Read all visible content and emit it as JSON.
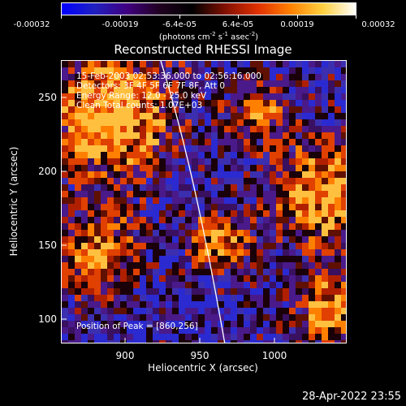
{
  "colorbar": {
    "labels": [
      "-0.00032",
      "-0.00019",
      "-6.4e-05",
      "6.4e-05",
      "0.00019",
      "0.00032"
    ],
    "units_prefix": "(photons cm",
    "units_exp1": "-2",
    "units_mid": " s",
    "units_exp2": "-1",
    "units_suffix": " asec",
    "units_exp3": "-2",
    "units_close": ")",
    "gradient": [
      "#0000ff",
      "#2020c0",
      "#400080",
      "#200020",
      "#000000",
      "#801000",
      "#e03000",
      "#ff8000",
      "#ffd040",
      "#ffffff"
    ]
  },
  "title": "Reconstructed RHESSI Image",
  "info": {
    "line1": "15-Feb-2003 02:53:36.000 to 02:56:16.000",
    "line2": "Detectors: 3F 4F 5F 6F 7F 8F, Att 0",
    "line3": "Energy Range: 12.0 - 25.0 keV",
    "line4": "Clean     Total counts: 1.07E+03"
  },
  "peak": "Position of Peak = [860,256]",
  "xaxis": {
    "label": "Heliocentric X (arcsec)",
    "ticks": [
      "900",
      "950",
      "1000"
    ]
  },
  "yaxis": {
    "label": "Heliocentric Y (arcsec)",
    "ticks": [
      "250",
      "200",
      "150",
      "100"
    ]
  },
  "timestamp": "28-Apr-2022 23:55",
  "colors": {
    "background": "#000000",
    "limb": "#ffffff",
    "image_base": "#4a1a8a"
  }
}
